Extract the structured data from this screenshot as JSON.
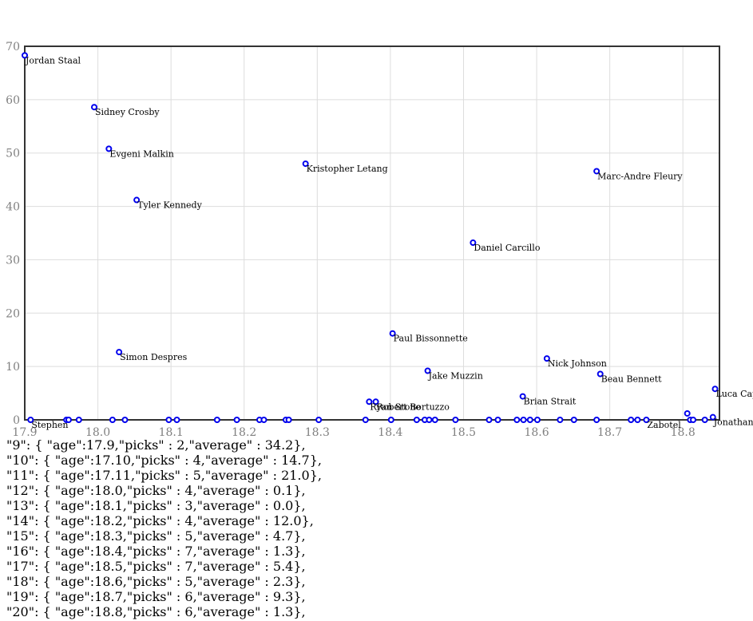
{
  "chart_data": {
    "type": "scatter",
    "title": "",
    "xlabel": "",
    "ylabel": "",
    "xlim": [
      17.9,
      18.85
    ],
    "ylim": [
      0,
      70
    ],
    "x_ticks": [
      17.9,
      18.0,
      18.1,
      18.2,
      18.3,
      18.4,
      18.5,
      18.6,
      18.7,
      18.8
    ],
    "x_tick_labels": [
      "17.9",
      "18.0",
      "18.1",
      "18.2",
      "18.3",
      "18.4",
      "18.5",
      "18.6",
      "18.7",
      "18.8"
    ],
    "y_ticks": [
      0,
      10,
      20,
      30,
      40,
      50,
      60,
      70
    ],
    "y_tick_labels": [
      "0",
      "10",
      "20",
      "30",
      "40",
      "50",
      "60",
      "70"
    ],
    "grid": true,
    "points": [
      {
        "x": 17.9,
        "y": 68.3,
        "label": "Jordan Staal"
      },
      {
        "x": 17.995,
        "y": 58.6,
        "label": "Sidney Crosby"
      },
      {
        "x": 18.015,
        "y": 50.8,
        "label": "Evgeni Malkin"
      },
      {
        "x": 18.053,
        "y": 41.2,
        "label": "Tyler Kennedy"
      },
      {
        "x": 18.284,
        "y": 48.0,
        "label": "Kristopher Letang"
      },
      {
        "x": 18.682,
        "y": 46.6,
        "label": "Marc-Andre Fleury"
      },
      {
        "x": 18.513,
        "y": 33.2,
        "label": "Daniel Carcillo"
      },
      {
        "x": 18.403,
        "y": 16.2,
        "label": "Paul Bissonnette"
      },
      {
        "x": 18.029,
        "y": 12.7,
        "label": "Simon Despres"
      },
      {
        "x": 18.451,
        "y": 9.2,
        "label": "Jake Muzzin"
      },
      {
        "x": 18.614,
        "y": 11.5,
        "label": "Nick Johnson"
      },
      {
        "x": 18.687,
        "y": 8.6,
        "label": "Beau Bennett"
      },
      {
        "x": 18.581,
        "y": 4.4,
        "label": "Brian Strait"
      },
      {
        "x": 18.371,
        "y": 3.4,
        "label": "Ryan Stone"
      },
      {
        "x": 18.38,
        "y": 3.4,
        "label": "Robert Bortuzzo"
      },
      {
        "x": 18.844,
        "y": 5.8,
        "label": "Luca Caputi"
      },
      {
        "x": 18.806,
        "y": 1.2,
        "label": ""
      },
      {
        "x": 18.841,
        "y": 0.5,
        "label": "Jonathan"
      },
      {
        "x": 17.908,
        "y": 0.0,
        "label": "Stephen"
      },
      {
        "x": 17.957,
        "y": 0.0,
        "label": ""
      },
      {
        "x": 17.96,
        "y": 0.0,
        "label": ""
      },
      {
        "x": 17.974,
        "y": 0.0,
        "label": ""
      },
      {
        "x": 18.02,
        "y": 0.0,
        "label": ""
      },
      {
        "x": 18.037,
        "y": 0.0,
        "label": ""
      },
      {
        "x": 18.097,
        "y": 0.0,
        "label": ""
      },
      {
        "x": 18.108,
        "y": 0.0,
        "label": ""
      },
      {
        "x": 18.163,
        "y": 0.0,
        "label": ""
      },
      {
        "x": 18.19,
        "y": 0.0,
        "label": ""
      },
      {
        "x": 18.221,
        "y": 0.0,
        "label": ""
      },
      {
        "x": 18.227,
        "y": 0.0,
        "label": ""
      },
      {
        "x": 18.257,
        "y": 0.0,
        "label": ""
      },
      {
        "x": 18.261,
        "y": 0.0,
        "label": ""
      },
      {
        "x": 18.302,
        "y": 0.0,
        "label": ""
      },
      {
        "x": 18.366,
        "y": 0.0,
        "label": ""
      },
      {
        "x": 18.401,
        "y": 0.0,
        "label": ""
      },
      {
        "x": 18.436,
        "y": 0.0,
        "label": ""
      },
      {
        "x": 18.447,
        "y": 0.0,
        "label": ""
      },
      {
        "x": 18.453,
        "y": 0.0,
        "label": ""
      },
      {
        "x": 18.461,
        "y": 0.0,
        "label": ""
      },
      {
        "x": 18.489,
        "y": 0.0,
        "label": ""
      },
      {
        "x": 18.535,
        "y": 0.0,
        "label": ""
      },
      {
        "x": 18.547,
        "y": 0.0,
        "label": ""
      },
      {
        "x": 18.573,
        "y": 0.0,
        "label": ""
      },
      {
        "x": 18.582,
        "y": 0.0,
        "label": ""
      },
      {
        "x": 18.591,
        "y": 0.0,
        "label": ""
      },
      {
        "x": 18.601,
        "y": 0.0,
        "label": ""
      },
      {
        "x": 18.632,
        "y": 0.0,
        "label": ""
      },
      {
        "x": 18.651,
        "y": 0.0,
        "label": ""
      },
      {
        "x": 18.682,
        "y": 0.0,
        "label": ""
      },
      {
        "x": 18.729,
        "y": 0.0,
        "label": ""
      },
      {
        "x": 18.738,
        "y": 0.0,
        "label": ""
      },
      {
        "x": 18.75,
        "y": 0.0,
        "label": "Zabotel"
      },
      {
        "x": 18.81,
        "y": 0.0,
        "label": ""
      },
      {
        "x": 18.814,
        "y": 0.0,
        "label": ""
      },
      {
        "x": 18.83,
        "y": 0.0,
        "label": ""
      }
    ]
  },
  "data_lines": [
    "\"9\": { \"age\":17.9,\"picks\" : 2,\"average\" : 34.2},",
    "\"10\": { \"age\":17.10,\"picks\" : 4,\"average\" : 14.7},",
    "\"11\": { \"age\":17.11,\"picks\" : 5,\"average\" : 21.0},",
    "\"12\": { \"age\":18.0,\"picks\" : 4,\"average\" : 0.1},",
    "\"13\": { \"age\":18.1,\"picks\" : 3,\"average\" : 0.0},",
    "\"14\": { \"age\":18.2,\"picks\" : 4,\"average\" : 12.0},",
    "\"15\": { \"age\":18.3,\"picks\" : 5,\"average\" : 4.7},",
    "\"16\": { \"age\":18.4,\"picks\" : 7,\"average\" : 1.3},",
    "\"17\": { \"age\":18.5,\"picks\" : 7,\"average\" : 5.4},",
    "\"18\": { \"age\":18.6,\"picks\" : 5,\"average\" : 2.3},",
    "\"19\": { \"age\":18.7,\"picks\" : 6,\"average\" : 9.3},",
    "\"20\": { \"age\":18.8,\"picks\" : 6,\"average\" : 1.3},"
  ]
}
